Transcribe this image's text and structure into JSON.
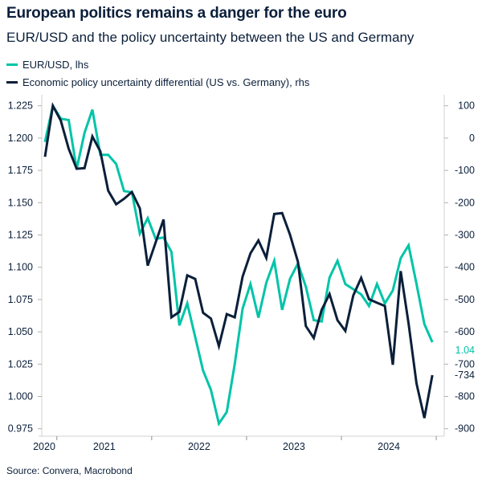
{
  "chart_data": {
    "type": "line",
    "title": "European politics remains a danger for the euro",
    "subtitle": "EUR/USD and the policy uncertainty between the US and Germany",
    "source": "Source: Convera, Macrobond",
    "x": [
      "2020-11",
      "2020-12",
      "2021-01",
      "2021-02",
      "2021-03",
      "2021-04",
      "2021-05",
      "2021-06",
      "2021-07",
      "2021-08",
      "2021-09",
      "2021-10",
      "2021-11",
      "2021-12",
      "2022-01",
      "2022-02",
      "2022-03",
      "2022-04",
      "2022-05",
      "2022-06",
      "2022-07",
      "2022-08",
      "2022-09",
      "2022-10",
      "2022-11",
      "2022-12",
      "2023-01",
      "2023-02",
      "2023-03",
      "2023-04",
      "2023-05",
      "2023-06",
      "2023-07",
      "2023-08",
      "2023-09",
      "2023-10",
      "2023-11",
      "2023-12",
      "2024-01",
      "2024-02",
      "2024-03",
      "2024-04",
      "2024-05",
      "2024-06",
      "2024-07",
      "2024-08",
      "2024-09",
      "2024-10",
      "2024-11",
      "2024-12"
    ],
    "x_tick_labels": [
      "2020",
      "2021",
      "2022",
      "2023",
      "2024"
    ],
    "left_axis": {
      "ylim": [
        0.975,
        1.225
      ],
      "ticks": [
        "1.225",
        "1.200",
        "1.175",
        "1.150",
        "1.125",
        "1.100",
        "1.075",
        "1.050",
        "1.025",
        "1.000",
        "0.975"
      ]
    },
    "right_axis": {
      "ylim": [
        -900,
        100
      ],
      "ticks": [
        "100",
        "0",
        "-100",
        "-200",
        "-300",
        "-400",
        "-500",
        "-600",
        "-700",
        "-800",
        "-900"
      ]
    },
    "grid": false,
    "legend_placement": "top-left",
    "series": [
      {
        "name": "EUR/USD, lhs",
        "axis": "left",
        "color": "#00c4a7",
        "last_label": "1.04",
        "values": [
          1.197,
          1.225,
          1.215,
          1.214,
          1.176,
          1.204,
          1.222,
          1.187,
          1.187,
          1.18,
          1.159,
          1.158,
          1.126,
          1.138,
          1.122,
          1.123,
          1.112,
          1.055,
          1.072,
          1.046,
          1.02,
          1.005,
          0.979,
          0.988,
          1.025,
          1.068,
          1.087,
          1.061,
          1.088,
          1.105,
          1.067,
          1.091,
          1.103,
          1.085,
          1.059,
          1.058,
          1.092,
          1.105,
          1.087,
          1.083,
          1.079,
          1.07,
          1.087,
          1.072,
          1.082,
          1.107,
          1.117,
          1.087,
          1.056,
          1.042
        ]
      },
      {
        "name": "Economic policy uncertainty differential (US vs. Germany), rhs",
        "axis": "right",
        "color": "#0b1f3a",
        "last_label": "-734",
        "values": [
          -58,
          100,
          54,
          -33,
          -95,
          -93,
          5,
          -41,
          -163,
          -205,
          -188,
          -167,
          -218,
          -395,
          -323,
          -252,
          -555,
          -538,
          -425,
          -436,
          -541,
          -559,
          -644,
          -545,
          -555,
          -429,
          -357,
          -317,
          -371,
          -235,
          -232,
          -299,
          -383,
          -582,
          -619,
          -532,
          -483,
          -564,
          -597,
          -487,
          -433,
          -499,
          -510,
          -520,
          -702,
          -412,
          -574,
          -760,
          -867,
          -734
        ]
      }
    ]
  }
}
